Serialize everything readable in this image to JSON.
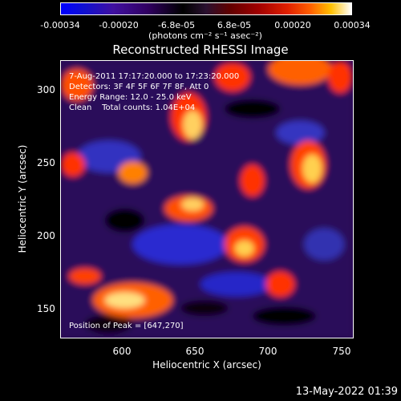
{
  "colorbar": {
    "ticks": [
      "-0.00034",
      "-0.00020",
      "-6.8e-05",
      "6.8e-05",
      "0.00020",
      "0.00034"
    ],
    "unit": "(photons cm⁻² s⁻¹ asec⁻²)"
  },
  "title": "Reconstructed RHESSI Image",
  "annotations": {
    "line1": "7-Aug-2011 17:17:20.000 to 17:23:20.000",
    "line2": "Detectors: 3F 4F 5F 6F 7F 8F, Att 0",
    "line3": "Energy Range: 12.0 - 25.0 keV",
    "line4": "Clean    Total counts: 1.04E+04",
    "peak": "Position of Peak = [647,270]"
  },
  "axes": {
    "xlabel": "Heliocentric X (arcsec)",
    "ylabel": "Heliocentric Y (arcsec)",
    "xticks": [
      "600",
      "650",
      "700",
      "750"
    ],
    "yticks": [
      "300",
      "250",
      "200",
      "150"
    ],
    "xlim": [
      560,
      750
    ],
    "ylim": [
      128,
      320
    ]
  },
  "timestamp": "13-May-2022 01:39",
  "colors": {
    "background": "#000000",
    "text": "#ffffff"
  }
}
